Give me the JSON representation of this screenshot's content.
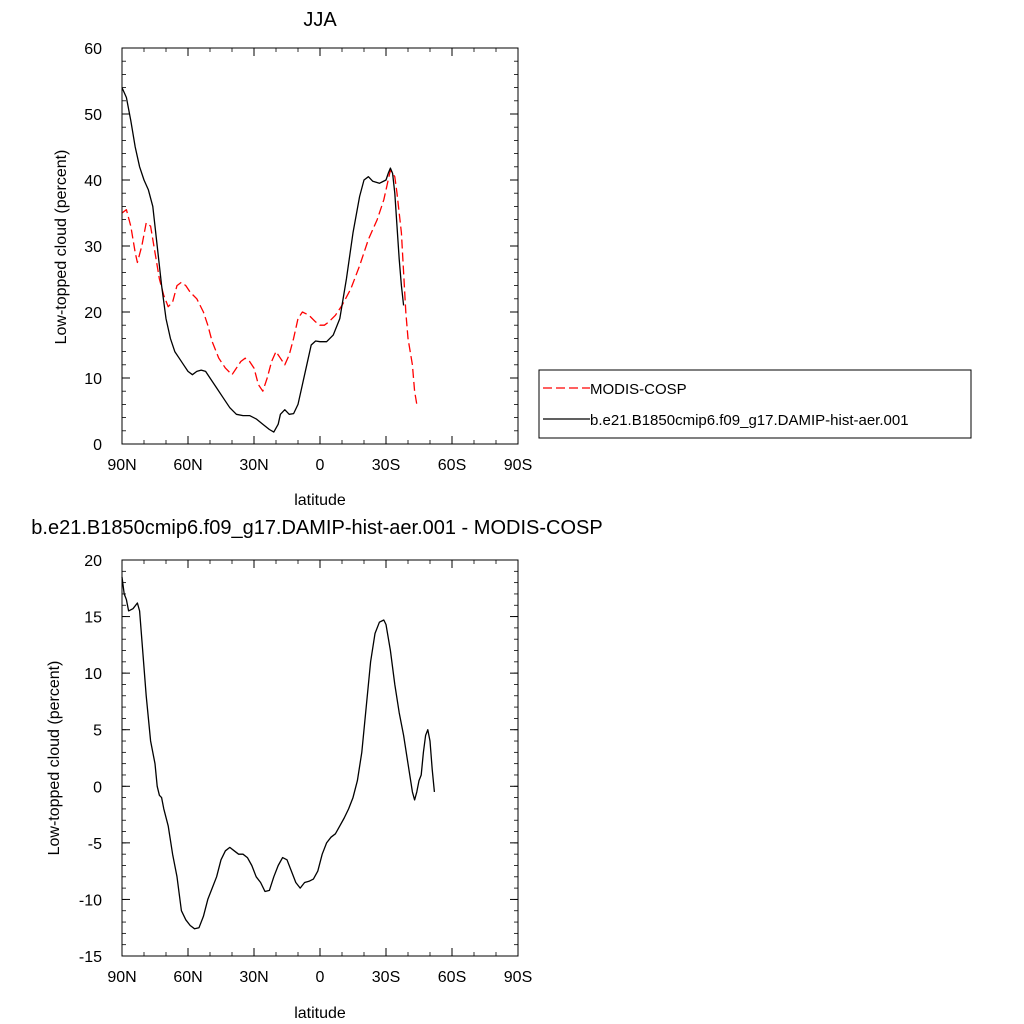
{
  "chart_data": [
    {
      "type": "line",
      "title": "JJA",
      "xlabel": "latitude",
      "ylabel": "Low-topped cloud (percent)",
      "xlim": [
        90,
        -90
      ],
      "ylim": [
        0,
        60
      ],
      "x_ticks": [
        90,
        60,
        30,
        0,
        -30,
        -60,
        -90
      ],
      "x_tick_labels": [
        "90N",
        "60N",
        "30N",
        "0",
        "30S",
        "60S",
        "90S"
      ],
      "y_ticks": [
        0,
        10,
        20,
        30,
        40,
        50,
        60
      ],
      "y_tick_labels": [
        "0",
        "10",
        "20",
        "30",
        "40",
        "50",
        "60"
      ],
      "legend": "outside-right",
      "series": [
        {
          "name": "MODIS-COSP",
          "color": "#ff0000",
          "dash": "dashed",
          "points": [
            [
              90,
              35
            ],
            [
              88,
              35.5
            ],
            [
              86,
              33
            ],
            [
              84,
              29
            ],
            [
              83,
              27.5
            ],
            [
              81,
              30
            ],
            [
              79,
              33.5
            ],
            [
              77,
              33
            ],
            [
              75,
              29
            ],
            [
              73,
              25
            ],
            [
              71,
              22.5
            ],
            [
              69,
              20.8
            ],
            [
              67,
              21.5
            ],
            [
              65,
              24
            ],
            [
              63,
              24.5
            ],
            [
              61,
              24
            ],
            [
              59,
              23
            ],
            [
              56,
              22
            ],
            [
              53,
              20
            ],
            [
              51,
              18
            ],
            [
              49,
              15.5
            ],
            [
              46,
              13
            ],
            [
              43,
              11.5
            ],
            [
              40,
              10.5
            ],
            [
              38,
              11.5
            ],
            [
              36,
              12.5
            ],
            [
              34,
              13
            ],
            [
              32,
              12.5
            ],
            [
              30,
              11.5
            ],
            [
              28,
              9
            ],
            [
              26,
              8
            ],
            [
              24,
              10
            ],
            [
              22,
              12.5
            ],
            [
              20,
              14
            ],
            [
              18,
              13
            ],
            [
              16,
              12
            ],
            [
              14,
              13.5
            ],
            [
              12,
              16
            ],
            [
              10,
              19
            ],
            [
              8,
              20
            ],
            [
              5,
              19.5
            ],
            [
              2,
              18.5
            ],
            [
              0,
              18
            ],
            [
              -2,
              18
            ],
            [
              -4,
              18.5
            ],
            [
              -7,
              19.5
            ],
            [
              -10,
              21
            ],
            [
              -14,
              23.5
            ],
            [
              -18,
              27
            ],
            [
              -22,
              31
            ],
            [
              -26,
              34
            ],
            [
              -29,
              37
            ],
            [
              -31,
              40
            ],
            [
              -32,
              41.5
            ],
            [
              -34,
              40.5
            ],
            [
              -35,
              38
            ],
            [
              -37,
              32
            ],
            [
              -38,
              26
            ],
            [
              -39,
              20
            ],
            [
              -40,
              16
            ],
            [
              -42,
              12
            ],
            [
              -43,
              8
            ],
            [
              -44,
              6
            ]
          ]
        },
        {
          "name": "b.e21.B1850cmip6.f09_g17.DAMIP-hist-aer.001",
          "color": "#000000",
          "dash": "solid",
          "points": [
            [
              90,
              54
            ],
            [
              88,
              52.5
            ],
            [
              86,
              49
            ],
            [
              84,
              45
            ],
            [
              82,
              42
            ],
            [
              80,
              40
            ],
            [
              78,
              38.5
            ],
            [
              76,
              36
            ],
            [
              74,
              30
            ],
            [
              72,
              24
            ],
            [
              70,
              19
            ],
            [
              68,
              16
            ],
            [
              66,
              14
            ],
            [
              64,
              13
            ],
            [
              62,
              12
            ],
            [
              60,
              11
            ],
            [
              58,
              10.5
            ],
            [
              56,
              11
            ],
            [
              54,
              11.2
            ],
            [
              52,
              11
            ],
            [
              50,
              10
            ],
            [
              47,
              8.5
            ],
            [
              44,
              7
            ],
            [
              41,
              5.5
            ],
            [
              38,
              4.5
            ],
            [
              35,
              4.3
            ],
            [
              32,
              4.3
            ],
            [
              29,
              3.8
            ],
            [
              26,
              3
            ],
            [
              23,
              2.2
            ],
            [
              21,
              1.8
            ],
            [
              19,
              3
            ],
            [
              18,
              4.5
            ],
            [
              16,
              5.2
            ],
            [
              14,
              4.5
            ],
            [
              12,
              4.6
            ],
            [
              10,
              6
            ],
            [
              8,
              9
            ],
            [
              6,
              12
            ],
            [
              4,
              15
            ],
            [
              2,
              15.6
            ],
            [
              0,
              15.5
            ],
            [
              -3,
              15.5
            ],
            [
              -6,
              16.5
            ],
            [
              -9,
              19
            ],
            [
              -12,
              25
            ],
            [
              -15,
              32
            ],
            [
              -18,
              37.5
            ],
            [
              -20,
              40
            ],
            [
              -22,
              40.5
            ],
            [
              -24,
              39.8
            ],
            [
              -27,
              39.5
            ],
            [
              -30,
              40
            ],
            [
              -31,
              41
            ],
            [
              -32,
              41.8
            ],
            [
              -33,
              41
            ],
            [
              -34,
              38
            ],
            [
              -35,
              33
            ],
            [
              -36,
              28
            ],
            [
              -37,
              24
            ],
            [
              -38,
              21
            ]
          ]
        }
      ]
    },
    {
      "type": "line",
      "title": "b.e21.B1850cmip6.f09_g17.DAMIP-hist-aer.001 - MODIS-COSP",
      "xlabel": "latitude",
      "ylabel": "Low-topped cloud (percent)",
      "xlim": [
        90,
        -90
      ],
      "ylim": [
        -15,
        20
      ],
      "x_ticks": [
        90,
        60,
        30,
        0,
        -30,
        -60,
        -90
      ],
      "x_tick_labels": [
        "90N",
        "60N",
        "30N",
        "0",
        "30S",
        "60S",
        "90S"
      ],
      "y_ticks": [
        -15,
        -10,
        -5,
        0,
        5,
        10,
        15,
        20
      ],
      "y_tick_labels": [
        "-15",
        "-10",
        "-5",
        "0",
        "5",
        "10",
        "15",
        "20"
      ],
      "series": [
        {
          "color": "#000000",
          "dash": "solid",
          "points": [
            [
              90,
              18.5
            ],
            [
              89,
              17
            ],
            [
              88,
              16.5
            ],
            [
              87,
              15.5
            ],
            [
              85,
              15.7
            ],
            [
              83,
              16.2
            ],
            [
              82,
              15.5
            ],
            [
              81,
              13
            ],
            [
              79,
              8
            ],
            [
              77,
              4
            ],
            [
              75,
              2
            ],
            [
              74,
              0
            ],
            [
              73,
              -0.8
            ],
            [
              72,
              -1
            ],
            [
              71,
              -2
            ],
            [
              69,
              -3.5
            ],
            [
              67,
              -6
            ],
            [
              65,
              -8
            ],
            [
              64,
              -9.5
            ],
            [
              63,
              -11
            ],
            [
              61,
              -11.8
            ],
            [
              59,
              -12.3
            ],
            [
              57,
              -12.6
            ],
            [
              55,
              -12.5
            ],
            [
              53,
              -11.5
            ],
            [
              51,
              -10
            ],
            [
              49,
              -9
            ],
            [
              47,
              -8
            ],
            [
              45,
              -6.5
            ],
            [
              43,
              -5.7
            ],
            [
              41,
              -5.4
            ],
            [
              39,
              -5.7
            ],
            [
              37,
              -6
            ],
            [
              35,
              -6
            ],
            [
              33,
              -6.3
            ],
            [
              31,
              -7
            ],
            [
              29,
              -8
            ],
            [
              27,
              -8.5
            ],
            [
              25,
              -9.3
            ],
            [
              23,
              -9.2
            ],
            [
              21,
              -8
            ],
            [
              19,
              -7
            ],
            [
              17,
              -6.3
            ],
            [
              15,
              -6.5
            ],
            [
              13,
              -7.5
            ],
            [
              11,
              -8.5
            ],
            [
              9,
              -9
            ],
            [
              7,
              -8.5
            ],
            [
              5,
              -8.4
            ],
            [
              3,
              -8.2
            ],
            [
              1,
              -7.5
            ],
            [
              -1,
              -6
            ],
            [
              -3,
              -5
            ],
            [
              -5,
              -4.5
            ],
            [
              -7,
              -4.2
            ],
            [
              -9,
              -3.5
            ],
            [
              -11,
              -2.8
            ],
            [
              -13,
              -2
            ],
            [
              -15,
              -1
            ],
            [
              -17,
              0.5
            ],
            [
              -19,
              3
            ],
            [
              -21,
              7
            ],
            [
              -23,
              11
            ],
            [
              -25,
              13.5
            ],
            [
              -27,
              14.5
            ],
            [
              -29,
              14.7
            ],
            [
              -30,
              14.3
            ],
            [
              -32,
              12
            ],
            [
              -34,
              9
            ],
            [
              -36,
              6.5
            ],
            [
              -38,
              4.5
            ],
            [
              -40,
              2
            ],
            [
              -42,
              -0.5
            ],
            [
              -43,
              -1.2
            ],
            [
              -44,
              -0.5
            ],
            [
              -45,
              0.5
            ],
            [
              -46,
              1
            ],
            [
              -47,
              3
            ],
            [
              -48,
              4.5
            ],
            [
              -49,
              5
            ],
            [
              -50,
              4
            ],
            [
              -51,
              1.5
            ],
            [
              -52,
              -0.5
            ]
          ]
        }
      ]
    }
  ],
  "legend_entries": [
    "MODIS-COSP",
    "b.e21.B1850cmip6.f09_g17.DAMIP-hist-aer.001"
  ]
}
